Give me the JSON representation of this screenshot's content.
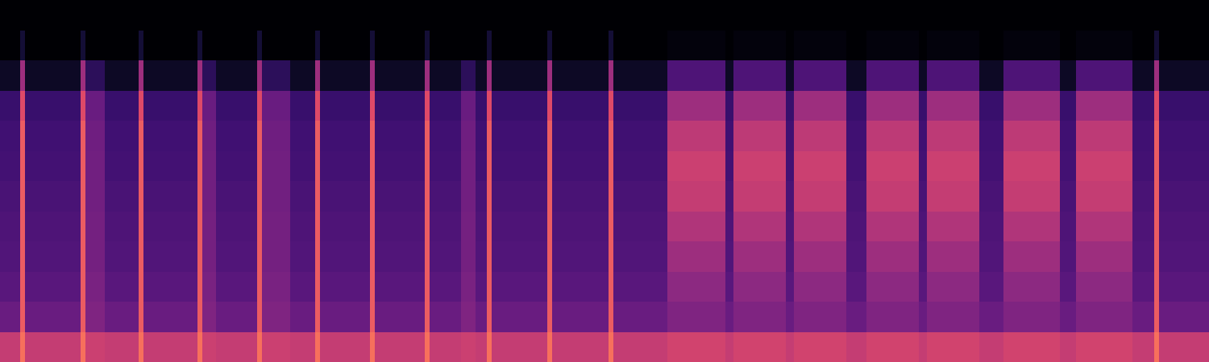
{
  "chart_data": {
    "type": "heatmap",
    "x": [
      0,
      25,
      31,
      100,
      106,
      130,
      172,
      178,
      245,
      251,
      268,
      319,
      325,
      360,
      391,
      397,
      459,
      465,
      527,
      533,
      572,
      590,
      604,
      610,
      679,
      685,
      755,
      761,
      828,
      900,
      910,
      975,
      985,
      1050,
      1075,
      1140,
      1150,
      1215,
      1245,
      1315,
      1335,
      1405,
      1432,
      1438,
      1500
    ],
    "y": [
      0,
      1,
      2,
      3,
      4,
      5,
      6,
      7,
      8,
      9,
      10,
      11,
      12
    ],
    "z": [
      [
        0.72,
        0.9,
        0.72,
        0.9,
        0.74,
        0.72,
        0.9,
        0.72,
        0.9,
        0.74,
        0.72,
        0.9,
        0.74,
        0.72,
        0.9,
        0.72,
        0.9,
        0.72,
        0.9,
        0.72,
        0.74,
        0.72,
        0.9,
        0.72,
        0.9,
        0.72,
        0.9,
        0.72,
        0.76,
        0.72,
        0.76,
        0.72,
        0.76,
        0.72,
        0.76,
        0.72,
        0.76,
        0.72,
        0.76,
        0.72,
        0.76,
        0.72,
        0.9,
        0.72
      ],
      [
        0.42,
        0.85,
        0.42,
        0.85,
        0.5,
        0.42,
        0.85,
        0.42,
        0.85,
        0.5,
        0.42,
        0.85,
        0.5,
        0.42,
        0.85,
        0.42,
        0.85,
        0.42,
        0.85,
        0.42,
        0.5,
        0.42,
        0.85,
        0.42,
        0.85,
        0.42,
        0.85,
        0.42,
        0.5,
        0.42,
        0.5,
        0.42,
        0.5,
        0.42,
        0.5,
        0.42,
        0.5,
        0.42,
        0.5,
        0.42,
        0.5,
        0.42,
        0.85,
        0.42
      ],
      [
        0.36,
        0.85,
        0.36,
        0.85,
        0.48,
        0.36,
        0.85,
        0.36,
        0.85,
        0.48,
        0.36,
        0.85,
        0.48,
        0.36,
        0.85,
        0.36,
        0.85,
        0.36,
        0.85,
        0.36,
        0.48,
        0.36,
        0.85,
        0.36,
        0.85,
        0.36,
        0.85,
        0.36,
        0.55,
        0.36,
        0.55,
        0.36,
        0.55,
        0.36,
        0.55,
        0.36,
        0.55,
        0.36,
        0.55,
        0.36,
        0.55,
        0.36,
        0.85,
        0.36
      ],
      [
        0.33,
        0.85,
        0.33,
        0.85,
        0.46,
        0.33,
        0.85,
        0.33,
        0.85,
        0.46,
        0.33,
        0.85,
        0.46,
        0.33,
        0.85,
        0.33,
        0.85,
        0.33,
        0.85,
        0.33,
        0.46,
        0.33,
        0.85,
        0.33,
        0.85,
        0.33,
        0.85,
        0.33,
        0.6,
        0.33,
        0.6,
        0.33,
        0.6,
        0.33,
        0.6,
        0.33,
        0.6,
        0.33,
        0.6,
        0.33,
        0.6,
        0.33,
        0.85,
        0.33
      ],
      [
        0.32,
        0.85,
        0.32,
        0.85,
        0.46,
        0.32,
        0.85,
        0.32,
        0.85,
        0.46,
        0.32,
        0.85,
        0.46,
        0.32,
        0.85,
        0.32,
        0.85,
        0.32,
        0.85,
        0.32,
        0.46,
        0.32,
        0.85,
        0.32,
        0.85,
        0.32,
        0.85,
        0.32,
        0.66,
        0.32,
        0.66,
        0.32,
        0.66,
        0.32,
        0.66,
        0.32,
        0.66,
        0.32,
        0.66,
        0.32,
        0.66,
        0.32,
        0.85,
        0.32
      ],
      [
        0.3,
        0.85,
        0.3,
        0.85,
        0.45,
        0.3,
        0.85,
        0.3,
        0.85,
        0.45,
        0.3,
        0.85,
        0.45,
        0.3,
        0.85,
        0.3,
        0.85,
        0.3,
        0.85,
        0.3,
        0.45,
        0.3,
        0.85,
        0.3,
        0.85,
        0.3,
        0.85,
        0.3,
        0.72,
        0.3,
        0.72,
        0.3,
        0.72,
        0.3,
        0.72,
        0.3,
        0.72,
        0.3,
        0.72,
        0.3,
        0.72,
        0.3,
        0.85,
        0.3
      ],
      [
        0.28,
        0.85,
        0.28,
        0.85,
        0.45,
        0.28,
        0.85,
        0.28,
        0.85,
        0.45,
        0.28,
        0.85,
        0.45,
        0.28,
        0.85,
        0.28,
        0.85,
        0.28,
        0.85,
        0.28,
        0.45,
        0.28,
        0.85,
        0.28,
        0.85,
        0.28,
        0.85,
        0.28,
        0.74,
        0.28,
        0.74,
        0.28,
        0.74,
        0.28,
        0.74,
        0.28,
        0.74,
        0.28,
        0.74,
        0.28,
        0.74,
        0.28,
        0.85,
        0.28
      ],
      [
        0.27,
        0.85,
        0.27,
        0.85,
        0.44,
        0.27,
        0.85,
        0.27,
        0.85,
        0.44,
        0.27,
        0.85,
        0.44,
        0.27,
        0.85,
        0.27,
        0.85,
        0.27,
        0.85,
        0.27,
        0.44,
        0.27,
        0.85,
        0.27,
        0.85,
        0.27,
        0.85,
        0.27,
        0.7,
        0.27,
        0.7,
        0.27,
        0.7,
        0.27,
        0.7,
        0.27,
        0.7,
        0.27,
        0.7,
        0.27,
        0.7,
        0.27,
        0.85,
        0.27
      ],
      [
        0.24,
        0.8,
        0.24,
        0.8,
        0.42,
        0.24,
        0.8,
        0.24,
        0.8,
        0.42,
        0.24,
        0.8,
        0.42,
        0.24,
        0.8,
        0.24,
        0.8,
        0.24,
        0.8,
        0.24,
        0.42,
        0.24,
        0.8,
        0.24,
        0.8,
        0.24,
        0.8,
        0.24,
        0.6,
        0.24,
        0.6,
        0.24,
        0.6,
        0.24,
        0.6,
        0.24,
        0.6,
        0.24,
        0.6,
        0.24,
        0.6,
        0.24,
        0.8,
        0.24
      ],
      [
        0.08,
        0.6,
        0.08,
        0.6,
        0.2,
        0.08,
        0.6,
        0.08,
        0.6,
        0.2,
        0.08,
        0.6,
        0.2,
        0.08,
        0.6,
        0.08,
        0.6,
        0.08,
        0.6,
        0.08,
        0.2,
        0.08,
        0.6,
        0.08,
        0.6,
        0.08,
        0.6,
        0.08,
        0.32,
        0.08,
        0.32,
        0.08,
        0.32,
        0.08,
        0.32,
        0.08,
        0.32,
        0.08,
        0.32,
        0.08,
        0.32,
        0.08,
        0.6,
        0.08
      ],
      [
        0,
        0.12,
        0,
        0.12,
        0,
        0,
        0.12,
        0,
        0.12,
        0,
        0,
        0.12,
        0,
        0,
        0.12,
        0,
        0.12,
        0,
        0.12,
        0,
        0,
        0,
        0.12,
        0,
        0.12,
        0,
        0.12,
        0,
        0.02,
        0,
        0.02,
        0,
        0.02,
        0,
        0.02,
        0,
        0.02,
        0,
        0.02,
        0,
        0.02,
        0,
        0.12,
        0
      ],
      [
        0,
        0,
        0,
        0,
        0,
        0,
        0,
        0,
        0,
        0,
        0,
        0,
        0,
        0,
        0,
        0,
        0,
        0,
        0,
        0,
        0,
        0,
        0,
        0,
        0,
        0,
        0,
        0,
        0,
        0,
        0,
        0,
        0,
        0,
        0,
        0,
        0,
        0,
        0,
        0,
        0,
        0,
        0,
        0
      ]
    ],
    "xlim": [
      0,
      1500
    ],
    "ylim": [
      0,
      12
    ],
    "zlim": [
      0,
      1
    ],
    "tick_labels": false,
    "grid": false
  }
}
